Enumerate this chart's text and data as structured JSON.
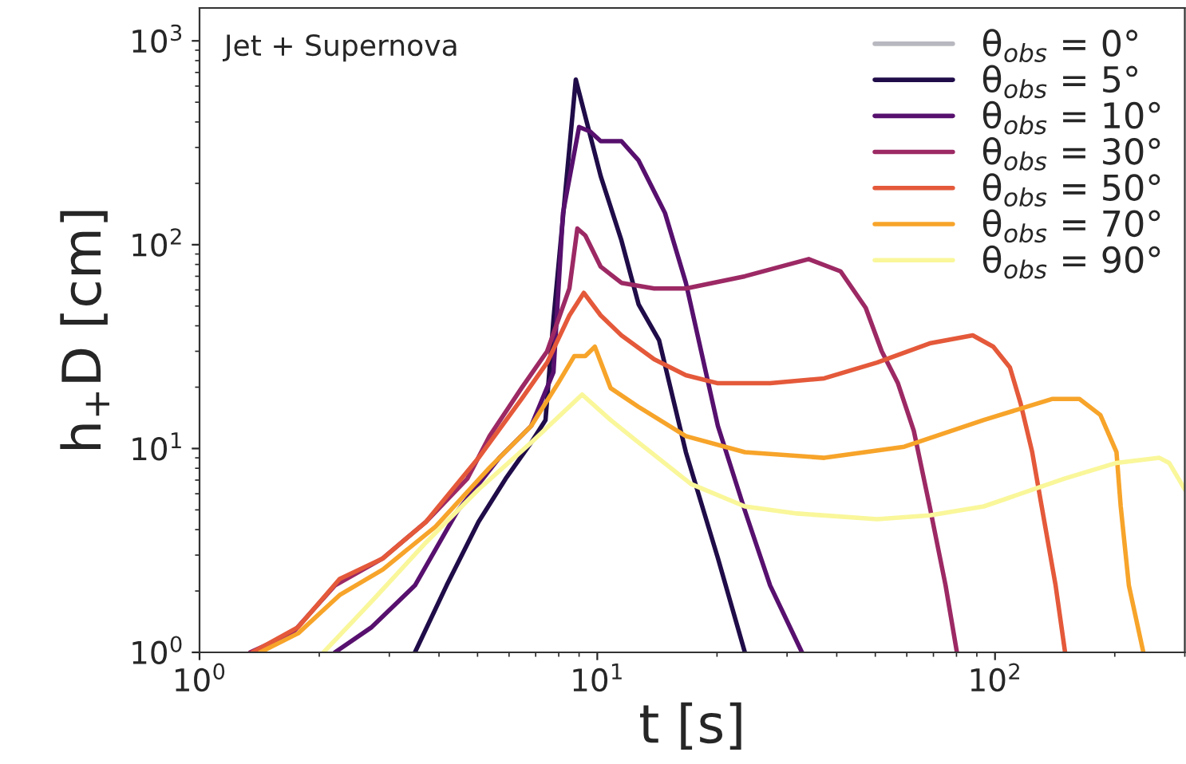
{
  "chart_data": {
    "type": "line",
    "xlabel": "t [s]",
    "ylabel": "h$_{+}$D [cm]",
    "annotations": [
      "Jet + Supernova"
    ],
    "log": "xy",
    "grid": false,
    "legend": "top right",
    "marker": "none",
    "line_style": "solid",
    "xlim": [
      1,
      300
    ],
    "ylim": [
      1,
      1450
    ],
    "xticks": [
      {
        "value": 1,
        "label": "10$^{0}$"
      },
      {
        "value": 10,
        "label": "10$^{1}$"
      },
      {
        "value": 100,
        "label": "10$^{2}$"
      }
    ],
    "yticks": [
      {
        "value": 1,
        "label": "10$^{0}$"
      },
      {
        "value": 10,
        "label": "10$^{1}$"
      },
      {
        "value": 100,
        "label": "10$^{2}$"
      },
      {
        "value": 1000,
        "label": "10$^{3}$"
      }
    ],
    "series": [
      {
        "name": "θ$_{obs}$ = 0°",
        "color": "#b8b8c0"
      },
      {
        "name": "θ$_{obs}$ = 5°",
        "color": "#1f0c48",
        "x": [
          3.48,
          4.18,
          5.03,
          5.88,
          6.82,
          7.41,
          7.76,
          8.83,
          10.2,
          11.5,
          12.7,
          14.3,
          16.7,
          20.1,
          23.5
        ],
        "values": [
          1,
          2.13,
          4.37,
          7.1,
          10.7,
          13.8,
          43,
          646,
          217,
          105,
          51,
          34,
          9.6,
          2.9,
          1
        ]
      },
      {
        "name": "θ$_{obs}$ = 10°",
        "color": "#57106e",
        "x": [
          2.19,
          2.71,
          3.48,
          4.46,
          5.67,
          6.82,
          7.76,
          8.2,
          9.0,
          9.6,
          10.2,
          11.5,
          12.7,
          14.8,
          16.7,
          20.1,
          23.5,
          27.2,
          32.7
        ],
        "values": [
          1,
          1.33,
          2.13,
          4.96,
          9.0,
          12.9,
          23.7,
          143,
          378,
          359,
          322,
          322,
          259,
          143,
          65,
          12.9,
          4.96,
          2.13,
          1
        ]
      },
      {
        "name": "θ$_{obs}$ = 30°",
        "color": "#9c2964",
        "x": [
          1.34,
          1.71,
          2.19,
          2.89,
          3.71,
          4.71,
          5.36,
          6.45,
          7.48,
          8.51,
          8.91,
          9.33,
          10.2,
          11.5,
          13.9,
          16.7,
          23.5,
          34,
          40.9,
          47.3,
          51.9,
          57,
          62.5,
          68.5,
          75.1,
          80.2
        ],
        "values": [
          1,
          1.24,
          2.13,
          2.89,
          4.37,
          7.1,
          11.5,
          19.8,
          30,
          61,
          120,
          111,
          78,
          65,
          61,
          61,
          70,
          85,
          74,
          49,
          30,
          20.9,
          12.2,
          5.2,
          2.13,
          1
        ]
      },
      {
        "name": "θ$_{obs}$ = 50°",
        "color": "#e4593a",
        "x": [
          1.36,
          1.77,
          2.25,
          2.89,
          3.71,
          5.03,
          6.45,
          7.48,
          8.51,
          9.25,
          10.2,
          11.5,
          13.9,
          16.7,
          20.1,
          27.2,
          37.2,
          50.5,
          68.5,
          87.9,
          99,
          109,
          116,
          124,
          131,
          142,
          150
        ],
        "values": [
          1,
          1.33,
          2.29,
          2.89,
          4.37,
          9.0,
          17.5,
          26.4,
          45,
          58,
          45,
          35.9,
          27.4,
          22.9,
          20.9,
          20.9,
          22.1,
          26.4,
          32.8,
          35.9,
          31.6,
          25,
          16.6,
          9.6,
          5.2,
          2.13,
          1
        ]
      },
      {
        "name": "θ$_{obs}$ = 70°",
        "color": "#f7a42a",
        "x": [
          1.42,
          1.77,
          2.25,
          2.89,
          3.92,
          5.36,
          6.82,
          7.97,
          8.75,
          9.33,
          9.86,
          10.8,
          12.7,
          16.7,
          23.5,
          37.2,
          59.1,
          93.7,
          139,
          163,
          184,
          202,
          207,
          217,
          236
        ],
        "values": [
          1,
          1.24,
          1.91,
          2.55,
          4.14,
          8.06,
          12.9,
          20.9,
          28.4,
          28.4,
          31.6,
          19.8,
          16,
          11.5,
          9.6,
          9.0,
          10.2,
          13.8,
          17.5,
          17.5,
          14.6,
          9.6,
          5.2,
          2.13,
          1
        ]
      },
      {
        "name": "θ$_{obs}$ = 90°",
        "color": "#f9f79a",
        "x": [
          2.05,
          2.71,
          3.71,
          5.03,
          6.82,
          9.16,
          10.8,
          12.7,
          17.2,
          23.5,
          31.8,
          50.5,
          68.5,
          93.7,
          149,
          202,
          259,
          274,
          300
        ],
        "values": [
          1,
          1.78,
          3.46,
          6.3,
          10.7,
          18.4,
          13.8,
          10.7,
          6.7,
          5.2,
          4.8,
          4.5,
          4.7,
          5.2,
          7.1,
          8.5,
          9.0,
          8.5,
          6.3
        ]
      }
    ]
  }
}
